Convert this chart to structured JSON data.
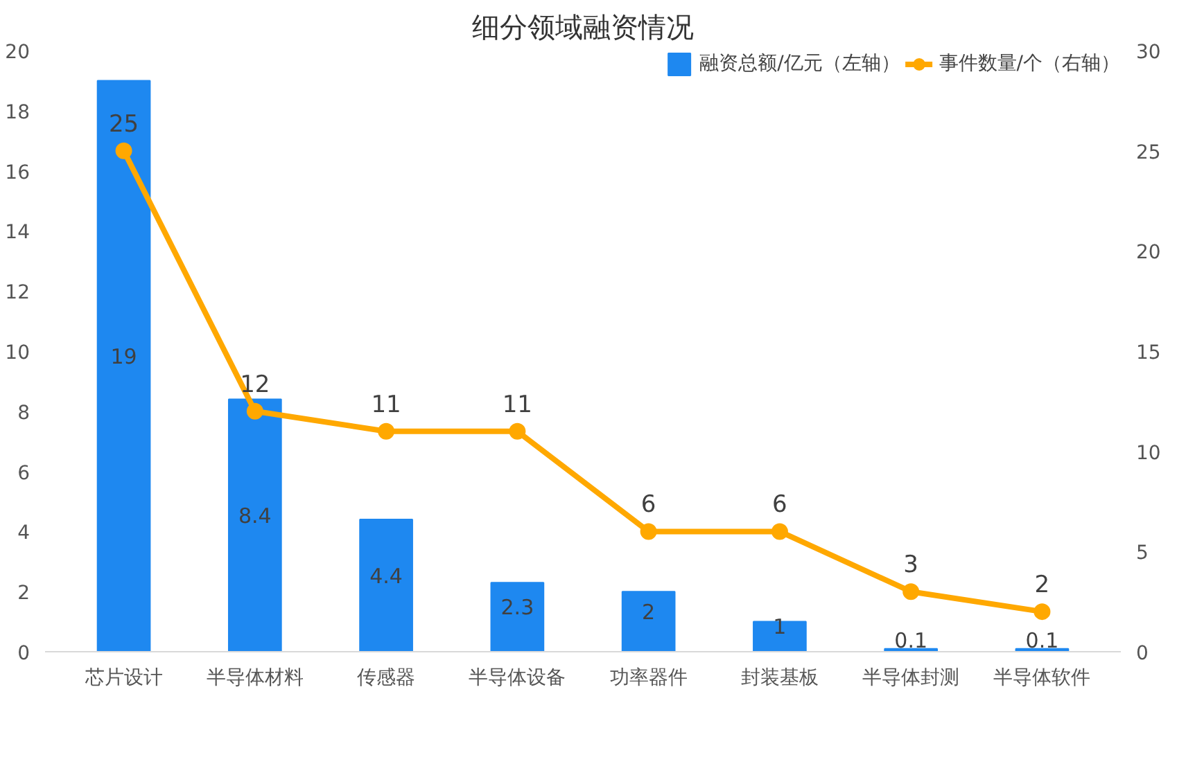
{
  "chart_data": {
    "type": "bar",
    "title": "细分领域融资情况",
    "categories": [
      "芯片设计",
      "半导体材料",
      "传感器",
      "半导体设备",
      "功率器件",
      "封装基板",
      "半导体封测",
      "半导体软件"
    ],
    "series": [
      {
        "name": "融资总额/亿元（左轴）",
        "color": "#1e88f0",
        "values": [
          19,
          8.4,
          4.4,
          2.3,
          2,
          1,
          0.1,
          0.1
        ]
      },
      {
        "name": "事件数量/个（右轴）",
        "type": "line",
        "axis": "y2",
        "color": "#ffa800",
        "marker": "circle",
        "values": [
          25,
          12,
          11,
          11,
          6,
          6,
          3,
          2
        ]
      }
    ],
    "ylim": [
      0,
      20
    ],
    "yticks": [
      0,
      2,
      4,
      6,
      8,
      10,
      12,
      14,
      16,
      18,
      20
    ],
    "y2lim": [
      0,
      30
    ],
    "y2ticks": [
      0,
      5,
      10,
      15,
      20,
      25,
      30
    ],
    "data_labels": true,
    "grid": false,
    "legend": "top right"
  }
}
